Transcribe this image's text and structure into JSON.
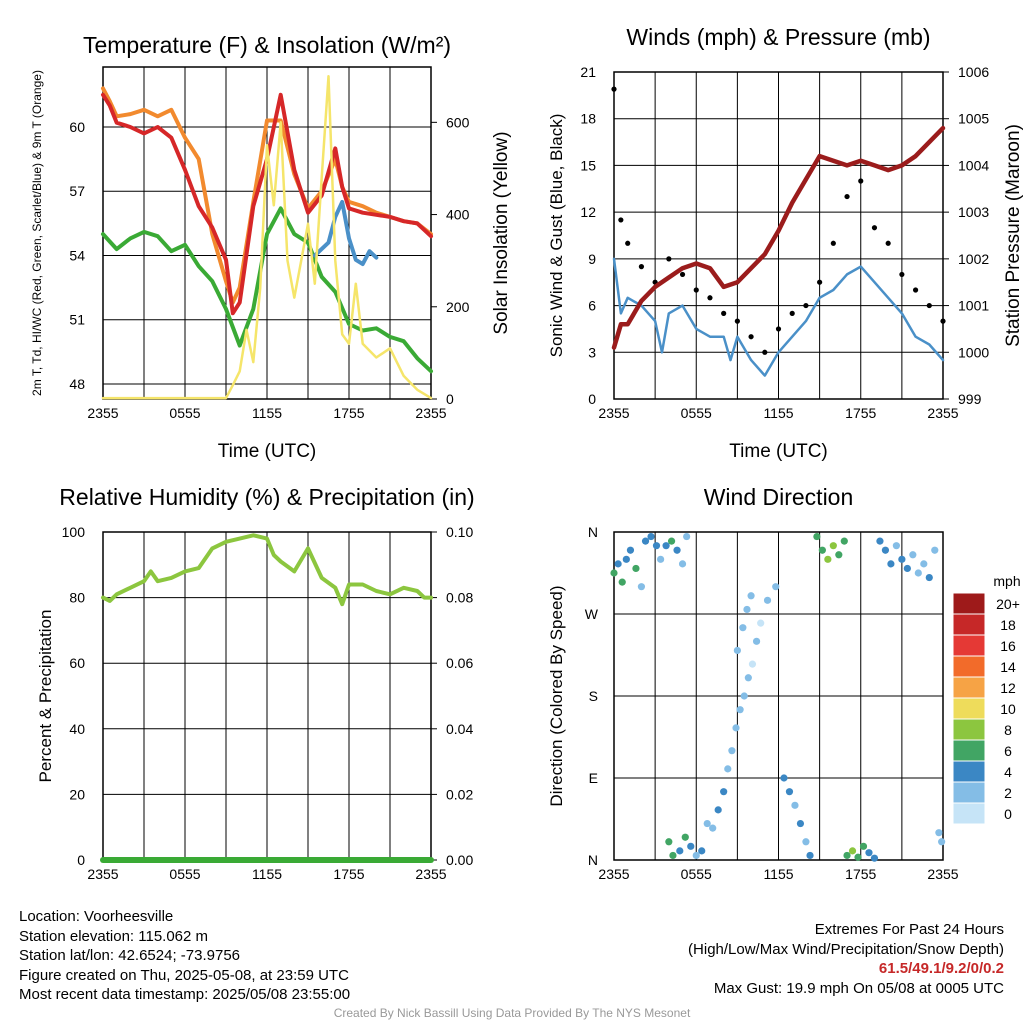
{
  "palette": {
    "temp": "#d62728",
    "dewpoint": "#3aaa35",
    "hiwc": "#4a90c8",
    "temp9m": "#f28a2e",
    "solar": "#f5e56a",
    "gust": "#000000",
    "wind": "#4a90c8",
    "pressure": "#9b1c1c",
    "rh": "#8cc63f",
    "precip": "#3aaa35"
  },
  "legend": {
    "unit": "mph",
    "items": [
      {
        "label": "20+",
        "color": "#9e1a1a"
      },
      {
        "label": "18",
        "color": "#c62828"
      },
      {
        "label": "16",
        "color": "#e53935"
      },
      {
        "label": "14",
        "color": "#f26b2a"
      },
      {
        "label": "12",
        "color": "#f6a345"
      },
      {
        "label": "10",
        "color": "#eedc5b"
      },
      {
        "label": "8",
        "color": "#8cc63f"
      },
      {
        "label": "6",
        "color": "#41a564"
      },
      {
        "label": "4",
        "color": "#3b87c4"
      },
      {
        "label": "2",
        "color": "#84bde6"
      },
      {
        "label": "0",
        "color": "#c6e4f7"
      }
    ]
  },
  "info": {
    "location": "Location: Voorheesville",
    "elevation": "Station elevation: 115.062 m",
    "latlon": "Station lat/lon: 42.6524; -73.9756",
    "created": "Figure created on Thu, 2025-05-08, at 23:59 UTC",
    "recent": "Most recent data timestamp: 2025/05/08 23:55:00",
    "extremes_title": "Extremes For Past 24 Hours",
    "extremes_desc": "(High/Low/Max Wind/Precipitation/Snow Depth)",
    "extremes_values": "61.5/49.1/9.2/0/0.2",
    "max_gust": "Max Gust: 19.9 mph On 05/08 at 0005 UTC"
  },
  "credit": "Created By Nick Bassill Using Data Provided By The NYS Mesonet",
  "chart_data": [
    {
      "id": "temperature",
      "type": "line",
      "title": "Temperature (F) & Insolation (W/m²)",
      "xlabel": "Time (UTC)",
      "ylabel_left": "2m T, Td, HI/WC (Red, Green, Scarlet/Blue) & 9m T (Orange)",
      "ylabel_right": "Solar Insolation (Yellow)",
      "x_ticks": [
        "2355",
        "0555",
        "1155",
        "1755",
        "2355"
      ],
      "x_range_hours": [
        0,
        24
      ],
      "y_left_range": [
        47.3,
        62.8
      ],
      "y_left_ticks": [
        48,
        51,
        54,
        57,
        60
      ],
      "y_right_range": [
        0,
        720
      ],
      "y_right_ticks": [
        0,
        200,
        400,
        600
      ],
      "grid": true,
      "series": [
        {
          "axis": "left",
          "color_key": "temp9m",
          "hours": [
            0,
            0.5,
            1,
            2,
            3,
            4,
            5,
            6,
            7,
            8,
            9,
            9.5,
            10,
            11,
            12,
            13,
            14,
            15,
            16,
            17,
            17.5,
            18,
            19,
            20,
            21,
            22,
            23,
            24
          ],
          "values": [
            61.8,
            61.2,
            60.5,
            60.6,
            60.8,
            60.5,
            60.8,
            59.5,
            58.5,
            55.0,
            52.8,
            51.8,
            52.5,
            56.5,
            60.3,
            60.3,
            57.8,
            56.2,
            57.0,
            58.5,
            57.2,
            56.5,
            56.3,
            56.0,
            55.8,
            55.6,
            55.5,
            55.0
          ]
        },
        {
          "axis": "left",
          "color_key": "temp",
          "hours": [
            0,
            0.5,
            1,
            2,
            3,
            4,
            5,
            6,
            7,
            8,
            9,
            9.5,
            10,
            11,
            12,
            13,
            14,
            15,
            16,
            17,
            17.5,
            18,
            19,
            20,
            21,
            22,
            23,
            24
          ],
          "values": [
            61.5,
            61.0,
            60.2,
            60.0,
            59.7,
            60.0,
            59.5,
            58.0,
            56.3,
            55.3,
            53.8,
            51.3,
            51.8,
            56.3,
            58.5,
            61.5,
            58.0,
            56.0,
            56.8,
            59.0,
            57.2,
            56.2,
            56.0,
            55.9,
            55.8,
            55.6,
            55.5,
            54.9
          ]
        },
        {
          "axis": "left",
          "color_key": "dewpoint",
          "hours": [
            0,
            1,
            2,
            3,
            4,
            5,
            6,
            7,
            8,
            9,
            10,
            11,
            12,
            13,
            14,
            15,
            16,
            17,
            18,
            19,
            20,
            21,
            22,
            23,
            24
          ],
          "values": [
            55.0,
            54.3,
            54.8,
            55.1,
            54.9,
            54.2,
            54.5,
            53.5,
            52.8,
            51.5,
            49.8,
            51.5,
            55.0,
            56.2,
            55.0,
            54.6,
            53.0,
            52.3,
            50.8,
            50.5,
            50.6,
            50.2,
            50.0,
            49.2,
            48.6
          ]
        },
        {
          "axis": "left",
          "color_key": "hiwc",
          "hours": [
            15.5,
            16.5,
            17,
            17.5,
            18,
            18.5,
            19,
            19.5,
            20
          ],
          "values": [
            54.0,
            54.6,
            55.8,
            56.5,
            54.8,
            53.8,
            53.6,
            54.2,
            53.9
          ]
        },
        {
          "axis": "right",
          "color_key": "solar",
          "hours": [
            0,
            9,
            9.5,
            10,
            10.5,
            11,
            11.5,
            12,
            12.5,
            13,
            13.5,
            14,
            14.5,
            15,
            15.5,
            16,
            16.5,
            17,
            17.5,
            18,
            18.5,
            19,
            20,
            21,
            22,
            23,
            24
          ],
          "values": [
            2,
            2,
            30,
            60,
            150,
            80,
            240,
            550,
            420,
            600,
            300,
            220,
            300,
            380,
            250,
            480,
            700,
            300,
            140,
            120,
            250,
            120,
            90,
            110,
            50,
            20,
            2
          ]
        }
      ]
    },
    {
      "id": "winds",
      "type": "line",
      "title": "Winds (mph) & Pressure (mb)",
      "xlabel": "Time (UTC)",
      "ylabel_left": "Sonic Wind & Gust (Blue, Black)",
      "ylabel_right": "Station Pressure (Maroon)",
      "x_ticks": [
        "2355",
        "0555",
        "1155",
        "1755",
        "2355"
      ],
      "x_range_hours": [
        0,
        24
      ],
      "y_left_range": [
        0,
        21
      ],
      "y_left_ticks": [
        0,
        3,
        6,
        9,
        12,
        15,
        18,
        21
      ],
      "y_right_range": [
        999,
        1006
      ],
      "y_right_ticks": [
        999,
        1000,
        1001,
        1002,
        1003,
        1004,
        1005,
        1006
      ],
      "grid": true,
      "series": [
        {
          "name": "",
          "axis": "left",
          "color_key": "wind",
          "hours": [
            0,
            0.5,
            1,
            2,
            3,
            3.5,
            4,
            5,
            6,
            7,
            8,
            8.5,
            9,
            10,
            11,
            12,
            13,
            14,
            15,
            16,
            17,
            18,
            19,
            20,
            21,
            22,
            23,
            24
          ],
          "values": [
            9.0,
            5.5,
            6.5,
            6.0,
            5.0,
            3.0,
            5.5,
            6.0,
            4.5,
            4.0,
            4.0,
            2.5,
            4.0,
            2.5,
            1.5,
            3.0,
            4.0,
            5.0,
            6.5,
            7.0,
            8.0,
            8.5,
            7.5,
            6.5,
            5.5,
            4.0,
            3.5,
            2.5
          ]
        },
        {
          "name": "",
          "axis": "left",
          "color_key": "gust",
          "style": "dots",
          "hours": [
            0,
            0.5,
            1,
            2,
            3,
            4,
            5,
            6,
            7,
            8,
            9,
            10,
            11,
            12,
            13,
            14,
            15,
            16,
            17,
            18,
            19,
            20,
            21,
            22,
            23,
            24
          ],
          "values": [
            19.9,
            11.5,
            10.0,
            8.5,
            7.5,
            9.0,
            8.0,
            7.0,
            6.5,
            5.5,
            5.0,
            4.0,
            3.0,
            4.5,
            5.5,
            6.0,
            7.5,
            10.0,
            13.0,
            14.0,
            11.0,
            10.0,
            8.0,
            7.0,
            6.0,
            5.0
          ]
        },
        {
          "name": "",
          "axis": "right",
          "color_key": "pressure",
          "hours": [
            0,
            0.5,
            1,
            2,
            3,
            4,
            5,
            6,
            7,
            8,
            9,
            10,
            11,
            12,
            13,
            14,
            15,
            16,
            17,
            18,
            19,
            20,
            21,
            22,
            23,
            24
          ],
          "values": [
            1000.1,
            1000.6,
            1000.6,
            1001.1,
            1001.4,
            1001.6,
            1001.8,
            1001.9,
            1001.8,
            1001.4,
            1001.5,
            1001.8,
            1002.1,
            1002.6,
            1003.2,
            1003.7,
            1004.2,
            1004.1,
            1004.0,
            1004.1,
            1004.0,
            1003.9,
            1004.0,
            1004.2,
            1004.5,
            1004.8
          ]
        }
      ]
    },
    {
      "id": "humidity",
      "type": "line",
      "title": "Relative Humidity (%) & Precipitation (in)",
      "xlabel": "",
      "ylabel_left": "Percent & Precipitation",
      "x_ticks": [
        "2355",
        "0555",
        "1155",
        "1755",
        "2355"
      ],
      "x_range_hours": [
        0,
        24
      ],
      "y_left_range": [
        0,
        100
      ],
      "y_left_ticks": [
        0,
        20,
        40,
        60,
        80,
        100
      ],
      "y_right_range": [
        0,
        0.1
      ],
      "y_right_ticks": [
        "0.00",
        "0.02",
        "0.04",
        "0.06",
        "0.08",
        "0.10"
      ],
      "grid": true,
      "series": [
        {
          "axis": "left",
          "color_key": "rh",
          "hours": [
            0,
            0.5,
            1,
            2,
            3,
            3.5,
            4,
            5,
            6,
            7,
            8,
            9,
            10,
            11,
            12,
            12.5,
            13,
            14,
            15,
            16,
            17,
            17.5,
            18,
            19,
            20,
            21,
            22,
            23,
            23.5,
            24
          ],
          "values": [
            80,
            79,
            81,
            83,
            85,
            88,
            85,
            86,
            88,
            89,
            95,
            97,
            98,
            99,
            98,
            93,
            91,
            88,
            95,
            86,
            83,
            78,
            84,
            84,
            82,
            81,
            83,
            82,
            80,
            80
          ]
        },
        {
          "axis": "right",
          "color_key": "precip",
          "hours": [
            0,
            24
          ],
          "values": [
            0,
            0
          ]
        }
      ]
    },
    {
      "id": "direction",
      "type": "scatter",
      "title": "Wind Direction",
      "ylabel_left": "Direction (Colored By Speed)",
      "x_ticks": [
        "2355",
        "0555",
        "1155",
        "1755",
        "2355"
      ],
      "x_range_hours": [
        0,
        24
      ],
      "y_range_deg": [
        0,
        360
      ],
      "y_ticks": [
        "N",
        "E",
        "S",
        "W",
        "N"
      ],
      "y_tick_values": [
        0,
        90,
        180,
        270,
        360
      ],
      "grid": true,
      "color_by": "speed_mph",
      "points": [
        [
          0.0,
          315,
          6
        ],
        [
          0.3,
          325,
          5
        ],
        [
          0.6,
          305,
          7
        ],
        [
          0.9,
          330,
          4
        ],
        [
          1.2,
          340,
          5
        ],
        [
          1.6,
          320,
          6
        ],
        [
          2.0,
          300,
          3
        ],
        [
          2.3,
          350,
          4
        ],
        [
          2.7,
          355,
          5
        ],
        [
          3.1,
          345,
          4
        ],
        [
          3.4,
          330,
          3
        ],
        [
          3.8,
          345,
          5
        ],
        [
          4.2,
          350,
          6
        ],
        [
          4.6,
          340,
          4
        ],
        [
          5.0,
          325,
          3
        ],
        [
          5.3,
          355,
          2
        ],
        [
          4.0,
          20,
          6
        ],
        [
          4.3,
          5,
          7
        ],
        [
          4.8,
          10,
          4
        ],
        [
          5.2,
          25,
          6
        ],
        [
          5.6,
          15,
          4
        ],
        [
          6.0,
          5,
          3
        ],
        [
          6.4,
          10,
          4
        ],
        [
          6.8,
          40,
          2
        ],
        [
          7.2,
          35,
          3
        ],
        [
          7.6,
          55,
          4
        ],
        [
          8.0,
          75,
          4
        ],
        [
          8.3,
          100,
          3
        ],
        [
          8.6,
          120,
          2
        ],
        [
          8.9,
          145,
          2
        ],
        [
          9.2,
          165,
          3
        ],
        [
          9.5,
          180,
          2
        ],
        [
          9.8,
          200,
          2
        ],
        [
          10.1,
          215,
          1
        ],
        [
          10.4,
          240,
          2
        ],
        [
          10.7,
          260,
          1
        ],
        [
          9.0,
          230,
          3
        ],
        [
          9.4,
          255,
          2
        ],
        [
          9.7,
          275,
          2
        ],
        [
          10.0,
          290,
          3
        ],
        [
          11.2,
          285,
          2
        ],
        [
          11.8,
          300,
          3
        ],
        [
          12.4,
          90,
          4
        ],
        [
          12.8,
          75,
          4
        ],
        [
          13.2,
          60,
          3
        ],
        [
          13.6,
          40,
          4
        ],
        [
          14.0,
          20,
          3
        ],
        [
          14.3,
          5,
          4
        ],
        [
          14.8,
          355,
          7
        ],
        [
          15.2,
          340,
          6
        ],
        [
          15.6,
          330,
          8
        ],
        [
          16.0,
          345,
          9
        ],
        [
          16.4,
          335,
          7
        ],
        [
          16.8,
          350,
          6
        ],
        [
          17.0,
          5,
          7
        ],
        [
          17.4,
          10,
          8
        ],
        [
          17.8,
          3,
          6
        ],
        [
          18.2,
          15,
          7
        ],
        [
          18.6,
          8,
          5
        ],
        [
          19.0,
          2,
          4
        ],
        [
          19.4,
          350,
          4
        ],
        [
          19.8,
          340,
          5
        ],
        [
          20.2,
          325,
          4
        ],
        [
          20.6,
          345,
          3
        ],
        [
          21.0,
          330,
          4
        ],
        [
          21.4,
          320,
          5
        ],
        [
          21.8,
          335,
          3
        ],
        [
          22.2,
          315,
          2
        ],
        [
          22.6,
          325,
          3
        ],
        [
          23.0,
          310,
          4
        ],
        [
          23.4,
          340,
          2
        ],
        [
          23.7,
          30,
          3
        ],
        [
          23.9,
          20,
          2
        ]
      ]
    }
  ]
}
